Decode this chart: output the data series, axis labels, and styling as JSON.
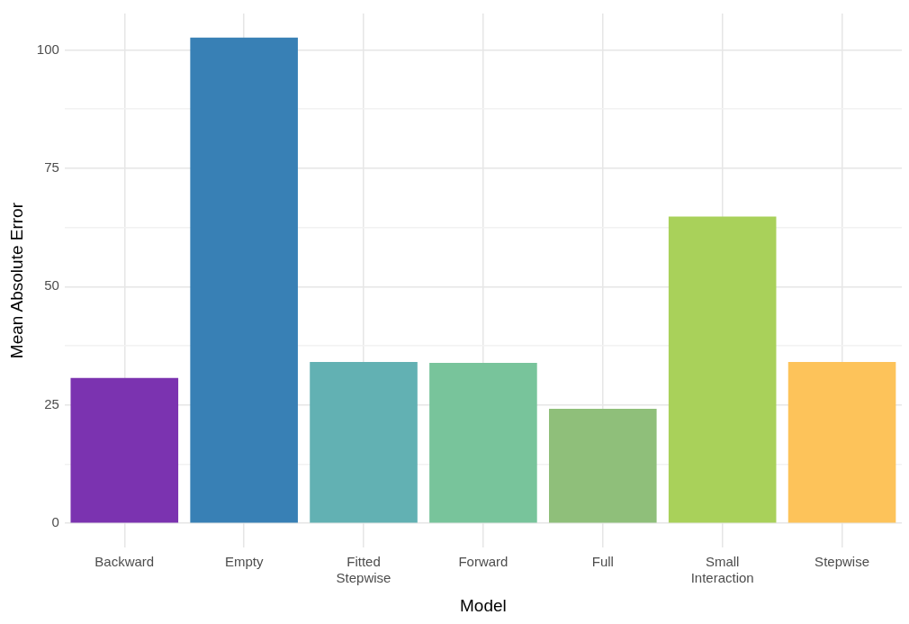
{
  "chart_data": {
    "type": "bar",
    "xlabel": "Model",
    "ylabel": "Mean Absolute Error",
    "categories": [
      "Backward",
      "Empty",
      "Fitted Stepwise",
      "Forward",
      "Full",
      "Small Interaction",
      "Stepwise"
    ],
    "values": [
      30.7,
      102.6,
      34.1,
      33.9,
      24.2,
      64.8,
      34.1
    ],
    "colors": [
      "#7b33b0",
      "#3880b5",
      "#62b1b3",
      "#78c49b",
      "#8fbf7a",
      "#a9d15a",
      "#fdc35a"
    ],
    "ylim": [
      -5.13,
      107.7
    ],
    "yticks": [
      0,
      {
        "value": 12.5,
        "label": null
      },
      25,
      {
        "value": 37.5,
        "label": null
      },
      50,
      {
        "value": 62.5,
        "label": null
      },
      75,
      {
        "value": 87.5,
        "label": null
      },
      100
    ],
    "grid": true,
    "legend": false
  }
}
